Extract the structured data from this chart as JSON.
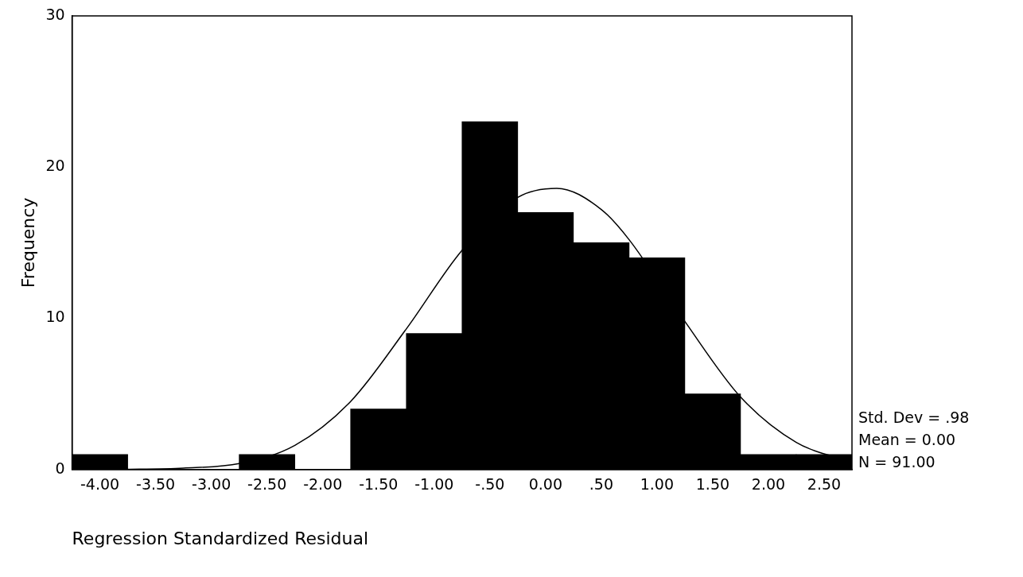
{
  "chart_data": {
    "type": "histogram",
    "xlabel": "Regression Standardized Residual",
    "ylabel": "Frequency",
    "bins": [
      -4.25,
      -3.75,
      -3.25,
      -2.75,
      -2.25,
      -1.75,
      -1.25,
      -0.75,
      -0.25,
      0.25,
      0.75,
      1.25,
      1.75,
      2.25,
      2.75
    ],
    "series": [
      {
        "color": "#000000",
        "values": [
          1,
          0,
          0,
          1,
          0,
          4,
          9,
          23,
          17,
          15,
          14,
          5,
          1,
          1
        ]
      },
      {
        "type": "line",
        "color": "#000000",
        "x": [
          -4.25,
          -3.75,
          -3.25,
          -2.75,
          -2.25,
          -1.75,
          -1.25,
          -0.75,
          -0.25,
          0.1,
          0.5,
          0.75,
          1.25,
          1.75,
          2.25,
          2.75
        ],
        "values": [
          0,
          0.02,
          0.1,
          0.4,
          1.6,
          4.5,
          9.3,
          14.5,
          18,
          18.6,
          17.2,
          15.2,
          9.8,
          4.8,
          1.8,
          0.5
        ]
      }
    ],
    "xlim": [
      -4.25,
      2.75
    ],
    "xticks": [
      {
        "value": -4,
        "label": "-4.00"
      },
      {
        "value": -3.5,
        "label": "-3.50"
      },
      {
        "value": -3,
        "label": "-3.00"
      },
      {
        "value": -2.5,
        "label": "-2.50"
      },
      {
        "value": -2,
        "label": "-2.00"
      },
      {
        "value": -1.5,
        "label": "-1.50"
      },
      {
        "value": -1,
        "label": "-1.00"
      },
      {
        "value": -0.5,
        "label": "-.50"
      },
      {
        "value": 0,
        "label": "0.00"
      },
      {
        "value": 0.5,
        "label": ".50"
      },
      {
        "value": 1,
        "label": "1.00"
      },
      {
        "value": 1.5,
        "label": "1.50"
      },
      {
        "value": 2,
        "label": "2.00"
      },
      {
        "value": 2.5,
        "label": "2.50"
      }
    ],
    "ylim": [
      0,
      30
    ],
    "yticks": [
      0,
      10,
      20,
      30
    ],
    "grid": false,
    "legend": false,
    "annotations": [
      "Std. Dev = .98",
      "Mean = 0.00",
      "N = 91.00"
    ]
  }
}
